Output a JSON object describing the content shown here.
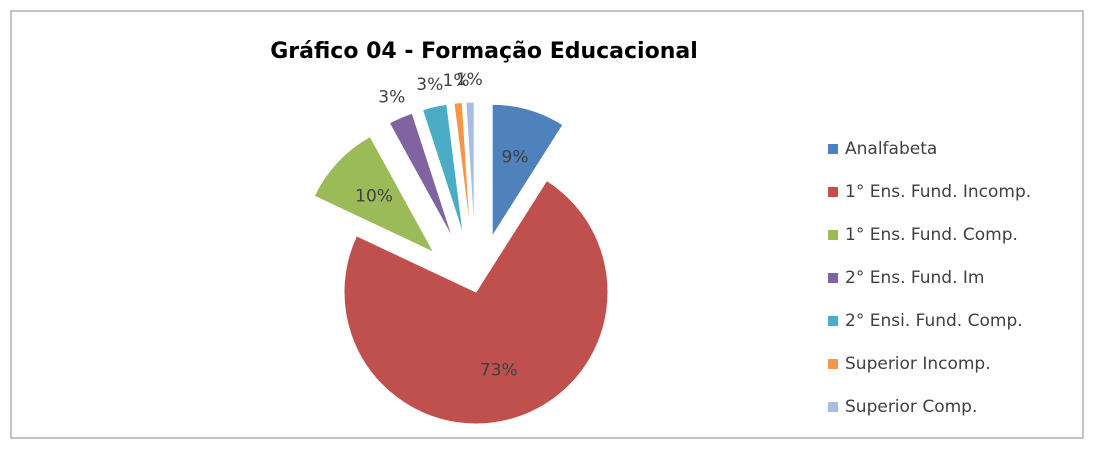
{
  "chart_data": {
    "type": "pie",
    "title": "Gráfico 04 - Formação Educacional",
    "categories": [
      "Analfabeta",
      "1° Ens. Fund. Incomp.",
      "1° Ens. Fund. Comp.",
      "2° Ens. Fund. Im",
      "2° Ensi. Fund. Comp.",
      "Superior Incomp.",
      "Superior Comp."
    ],
    "values": [
      9,
      73,
      10,
      3,
      3,
      1,
      1
    ],
    "value_labels": [
      "9%",
      "73%",
      "10%",
      "3%",
      "3%",
      "1%",
      "1%"
    ],
    "colors": [
      "#4f81bd",
      "#c0504d",
      "#9bbb59",
      "#8064a2",
      "#4bacc6",
      "#f79646",
      "#a8bde2"
    ],
    "legend": "right"
  }
}
